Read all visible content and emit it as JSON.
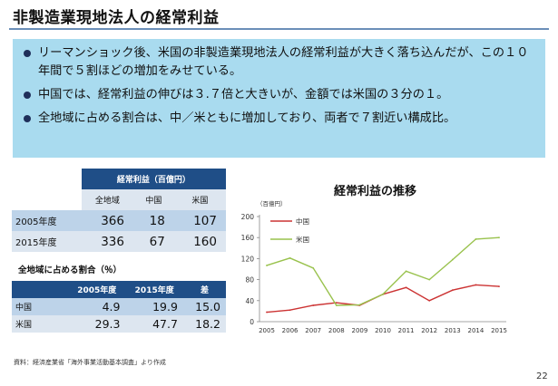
{
  "slide": {
    "title": "非製造業現地法人の経常利益",
    "page_number": "22",
    "source": "資料：経済産業省「海外事業活動基本調査」より作成"
  },
  "bullets": [
    "リーマンショック後、米国の非製造業現地法人の経常利益が大きく落ち込んだが、この１０年間で５割ほどの増加をみせている。",
    "中国では、経常利益の伸びは３.７倍と大きいが、金額では米国の３分の１。",
    "全地域に占める割合は、中／米ともに増加しており、両者で７割近い構成比。"
  ],
  "profit_table": {
    "group_header": "経常利益（百億円）",
    "columns": [
      "全地域",
      "中国",
      "米国"
    ],
    "rows": [
      {
        "label": "2005年度",
        "values": [
          "366",
          "18",
          "107"
        ]
      },
      {
        "label": "2015年度",
        "values": [
          "336",
          "67",
          "160"
        ]
      }
    ]
  },
  "share_table": {
    "caption": "全地域に占める割合（％）",
    "columns": [
      "",
      "2005年度",
      "2015年度",
      "差"
    ],
    "rows": [
      {
        "label": "中国",
        "values": [
          "4.9",
          "19.9",
          "15.0"
        ]
      },
      {
        "label": "米国",
        "values": [
          "29.3",
          "47.7",
          "18.2"
        ]
      }
    ]
  },
  "chart_data": {
    "type": "line",
    "title": "経常利益の推移",
    "unit_label": "（百億円）",
    "x": [
      "2005",
      "2006",
      "2007",
      "2008",
      "2009",
      "2010",
      "2011",
      "2012",
      "2013",
      "2014",
      "2015"
    ],
    "ylim": [
      0,
      200
    ],
    "yticks": [
      "0",
      "40",
      "80",
      "120",
      "160",
      "200"
    ],
    "grid": false,
    "legend_position": "top-left",
    "series": [
      {
        "name": "中国",
        "color": "#cc3333",
        "values": [
          18,
          22,
          31,
          36,
          31,
          52,
          65,
          40,
          60,
          70,
          67
        ]
      },
      {
        "name": "米国",
        "color": "#99c24d",
        "values": [
          107,
          121,
          102,
          31,
          32,
          52,
          96,
          80,
          118,
          157,
          160
        ]
      }
    ]
  }
}
